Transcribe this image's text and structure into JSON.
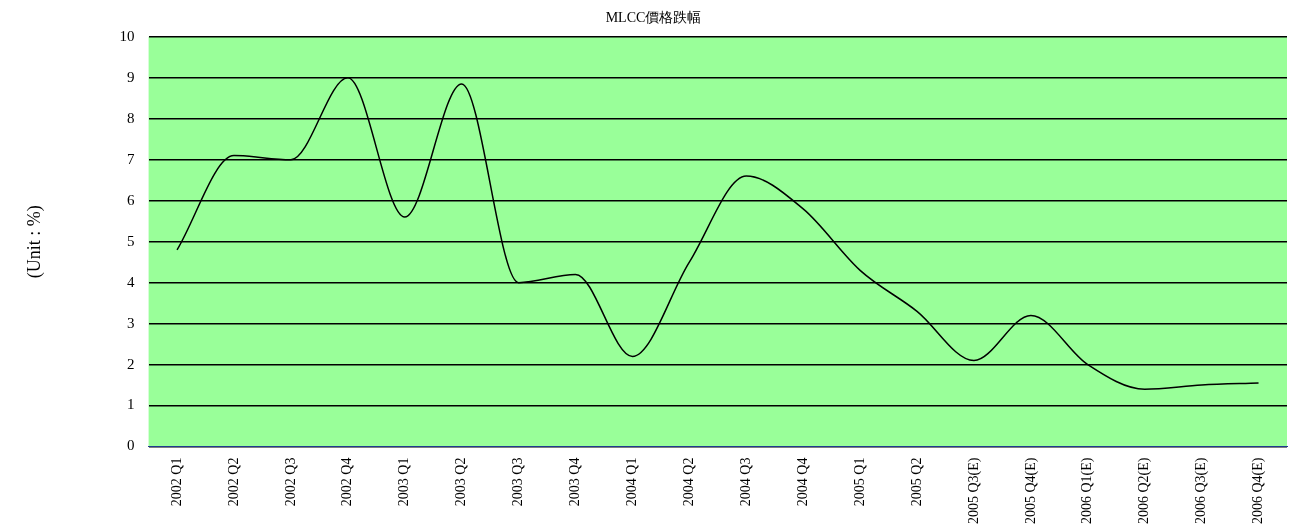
{
  "chart_data": {
    "type": "line",
    "title": "MLCC價格跌幅",
    "ylabel": "(Unit : %)",
    "categories": [
      "2002 Q1",
      "2002 Q2",
      "2002 Q3",
      "2002 Q4",
      "2003 Q1",
      "2003 Q2",
      "2003 Q3",
      "2003 Q4",
      "2004 Q1",
      "2004 Q2",
      "2004 Q3",
      "2004 Q4",
      "2005 Q1",
      "2005 Q2",
      "2005 Q3(E)",
      "2005 Q4(E)",
      "2006 Q1(E)",
      "2006 Q2(E)",
      "2006 Q3(E)",
      "2006 Q4(E)"
    ],
    "series": [
      {
        "color": "#000000",
        "values": [
          4.8,
          7.1,
          7.0,
          9.0,
          5.6,
          8.85,
          4.0,
          4.2,
          2.2,
          4.5,
          6.6,
          5.8,
          4.3,
          3.3,
          2.1,
          3.2,
          2.0,
          1.4,
          1.5,
          1.55
        ]
      }
    ],
    "ylim": [
      0,
      10
    ],
    "yticks": [
      0,
      1,
      2,
      3,
      4,
      5,
      6,
      7,
      8,
      9,
      10
    ],
    "grid": "y",
    "legend": false,
    "marker": "none",
    "line_style": "solid"
  }
}
